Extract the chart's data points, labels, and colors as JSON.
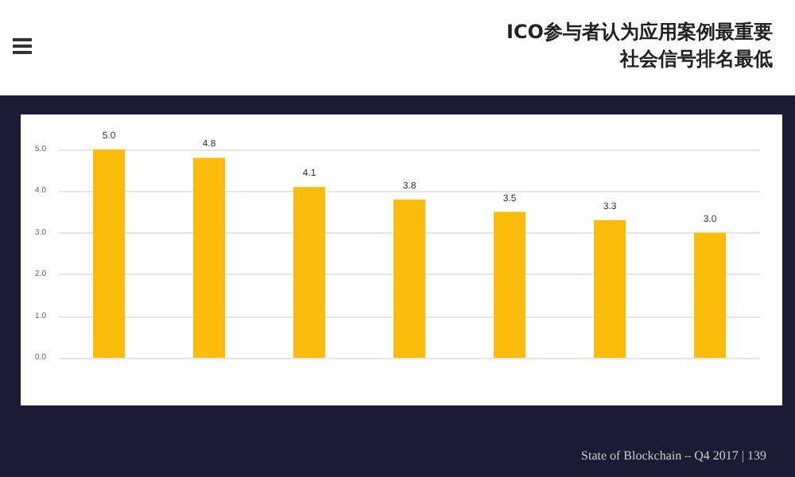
{
  "chart_data": {
    "type": "bar",
    "title": "ICO参与者认为应用案例最重要社会信号排名最低",
    "categories": [
      null,
      null,
      null,
      null,
      null,
      null,
      null
    ],
    "values": [
      5.0,
      4.8,
      4.1,
      3.8,
      3.5,
      3.3,
      3.0
    ],
    "color": "#fcbc0c",
    "value_labels": [
      "5.0",
      "4.8",
      "4.1",
      "3.8",
      "3.5",
      "3.3",
      "3.0"
    ],
    "ylim": [
      0,
      5
    ],
    "yticks": [
      {
        "value": 0,
        "label": "0.0"
      },
      {
        "value": 1,
        "label": "1.0"
      },
      {
        "value": 2,
        "label": "2.0"
      },
      {
        "value": 3,
        "label": "3.0"
      },
      {
        "value": 4,
        "label": "4.0"
      },
      {
        "value": 5,
        "label": "5.0"
      }
    ],
    "grid": "y",
    "annotations": [
      "State of Blockchain – Q4 2017  |  139"
    ]
  }
}
